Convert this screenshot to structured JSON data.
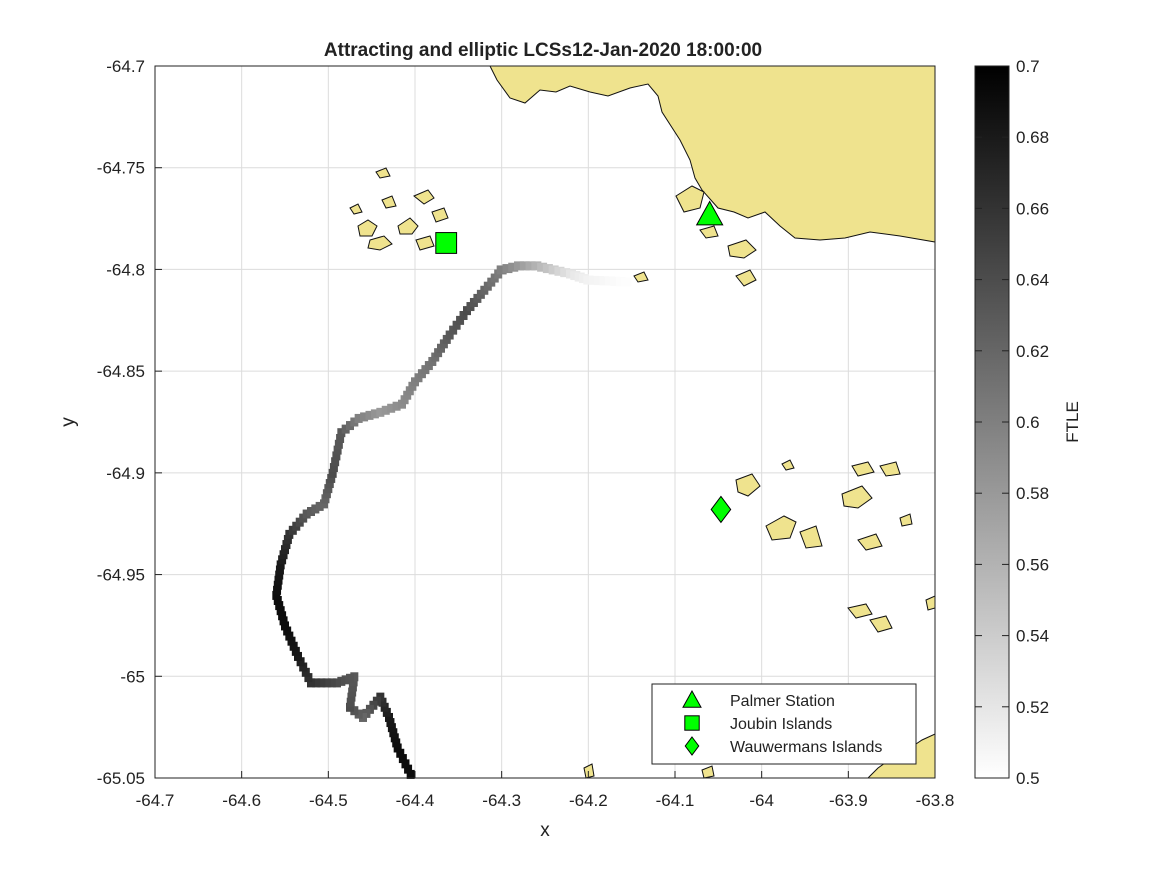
{
  "chart_data": {
    "type": "heatmap",
    "title": "Attracting and elliptic LCSs12-Jan-2020 18:00:00",
    "xlabel": "x",
    "ylabel": "y",
    "xlim": [
      -64.7,
      -63.8
    ],
    "ylim": [
      -65.05,
      -64.7
    ],
    "xticks": [
      -64.7,
      -64.6,
      -64.5,
      -64.4,
      -64.3,
      -64.2,
      -64.1,
      -64,
      -63.9,
      -63.8
    ],
    "xtick_labels": [
      "-64.7",
      "-64.6",
      "-64.5",
      "-64.4",
      "-64.3",
      "-64.2",
      "-64.1",
      "-64",
      "-63.9",
      "-63.8"
    ],
    "yticks": [
      -64.7,
      -64.75,
      -64.8,
      -64.85,
      -64.9,
      -64.95,
      -65,
      -65.05
    ],
    "ytick_labels": [
      "-64.7",
      "-64.75",
      "-64.8",
      "-64.85",
      "-64.9",
      "-64.95",
      "-65",
      "-65.05"
    ],
    "grid": true,
    "colorbar": {
      "label": "FTLE",
      "clim": [
        0.5,
        0.7
      ],
      "ticks": [
        0.5,
        0.52,
        0.54,
        0.56,
        0.58,
        0.6,
        0.62,
        0.64,
        0.66,
        0.68,
        0.7
      ],
      "tick_labels": [
        "0.5",
        "0.52",
        "0.54",
        "0.56",
        "0.58",
        "0.6",
        "0.62",
        "0.64",
        "0.66",
        "0.68",
        "0.7"
      ],
      "colormap": "white-to-black"
    },
    "ridge": [
      {
        "x": -64.405,
        "y": -65.048,
        "v": 0.69
      },
      {
        "x": -64.42,
        "y": -65.035,
        "v": 0.69
      },
      {
        "x": -64.43,
        "y": -65.02,
        "v": 0.68
      },
      {
        "x": -64.44,
        "y": -65.01,
        "v": 0.66
      },
      {
        "x": -64.46,
        "y": -65.02,
        "v": 0.62
      },
      {
        "x": -64.475,
        "y": -65.015,
        "v": 0.64
      },
      {
        "x": -64.47,
        "y": -65.0,
        "v": 0.63
      },
      {
        "x": -64.49,
        "y": -65.003,
        "v": 0.64
      },
      {
        "x": -64.52,
        "y": -65.003,
        "v": 0.66
      },
      {
        "x": -64.535,
        "y": -64.99,
        "v": 0.68
      },
      {
        "x": -64.55,
        "y": -64.975,
        "v": 0.69
      },
      {
        "x": -64.56,
        "y": -64.96,
        "v": 0.69
      },
      {
        "x": -64.555,
        "y": -64.945,
        "v": 0.68
      },
      {
        "x": -64.545,
        "y": -64.93,
        "v": 0.66
      },
      {
        "x": -64.525,
        "y": -64.92,
        "v": 0.63
      },
      {
        "x": -64.505,
        "y": -64.915,
        "v": 0.62
      },
      {
        "x": -64.495,
        "y": -64.9,
        "v": 0.64
      },
      {
        "x": -64.485,
        "y": -64.88,
        "v": 0.63
      },
      {
        "x": -64.465,
        "y": -64.873,
        "v": 0.6
      },
      {
        "x": -64.44,
        "y": -64.87,
        "v": 0.58
      },
      {
        "x": -64.415,
        "y": -64.866,
        "v": 0.59
      },
      {
        "x": -64.4,
        "y": -64.855,
        "v": 0.6
      },
      {
        "x": -64.38,
        "y": -64.845,
        "v": 0.61
      },
      {
        "x": -64.36,
        "y": -64.832,
        "v": 0.63
      },
      {
        "x": -64.34,
        "y": -64.82,
        "v": 0.64
      },
      {
        "x": -64.32,
        "y": -64.81,
        "v": 0.62
      },
      {
        "x": -64.3,
        "y": -64.8,
        "v": 0.6
      },
      {
        "x": -64.28,
        "y": -64.798,
        "v": 0.58
      },
      {
        "x": -64.26,
        "y": -64.798,
        "v": 0.56
      },
      {
        "x": -64.24,
        "y": -64.8,
        "v": 0.54
      },
      {
        "x": -64.22,
        "y": -64.802,
        "v": 0.52
      },
      {
        "x": -64.2,
        "y": -64.805,
        "v": 0.51
      },
      {
        "x": -64.15,
        "y": -64.806,
        "v": 0.5
      }
    ],
    "land_color": "#efe38e",
    "legend": {
      "placement": "bottom-right",
      "entries": [
        {
          "name": "Palmer Station",
          "marker": "triangle",
          "color": "#00ff00",
          "x": -64.06,
          "y": -64.773
        },
        {
          "name": "Joubin Islands",
          "marker": "square",
          "color": "#00ff00",
          "x": -64.364,
          "y": -64.787
        },
        {
          "name": "Wauwermans Islands",
          "marker": "diamond",
          "color": "#00ff00",
          "x": -64.047,
          "y": -64.918
        }
      ]
    }
  }
}
